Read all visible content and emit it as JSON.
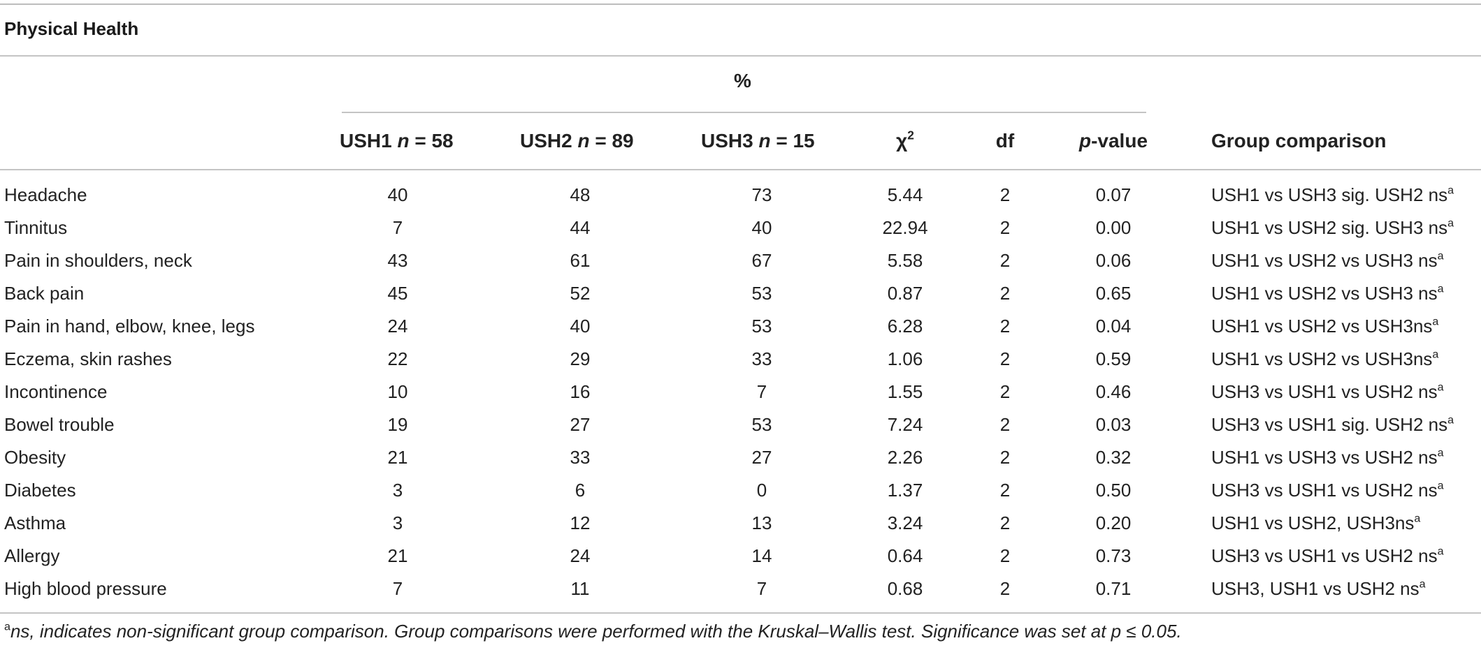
{
  "table": {
    "title": "Physical Health",
    "percent_label": "%",
    "headers": {
      "ush1_prefix": "USH1 ",
      "ush1_n": "n",
      "ush1_suffix": " = 58",
      "ush2_prefix": "USH2 ",
      "ush2_n": "n",
      "ush2_suffix": " = 89",
      "ush3_prefix": "USH3 ",
      "ush3_n": "n",
      "ush3_suffix": " = 15",
      "chi": "χ",
      "chi_sup": "2",
      "df": "df",
      "p_italic": "p",
      "p_rest": "-value",
      "group": "Group comparison"
    },
    "rows": [
      {
        "label": "Headache",
        "ush1": "40",
        "ush2": "48",
        "ush3": "73",
        "chi2": "5.44",
        "df": "2",
        "p": "0.07",
        "group": "USH1 vs USH3 sig. USH2 ns",
        "sup": "a"
      },
      {
        "label": "Tinnitus",
        "ush1": "7",
        "ush2": "44",
        "ush3": "40",
        "chi2": "22.94",
        "df": "2",
        "p": "0.00",
        "group": "USH1 vs USH2 sig. USH3 ns",
        "sup": "a"
      },
      {
        "label": "Pain in shoulders, neck",
        "ush1": "43",
        "ush2": "61",
        "ush3": "67",
        "chi2": "5.58",
        "df": "2",
        "p": "0.06",
        "group": "USH1 vs USH2 vs USH3 ns",
        "sup": "a"
      },
      {
        "label": "Back pain",
        "ush1": "45",
        "ush2": "52",
        "ush3": "53",
        "chi2": "0.87",
        "df": "2",
        "p": "0.65",
        "group": "USH1 vs USH2 vs USH3 ns",
        "sup": "a"
      },
      {
        "label": "Pain in hand, elbow, knee, legs",
        "ush1": "24",
        "ush2": "40",
        "ush3": "53",
        "chi2": "6.28",
        "df": "2",
        "p": "0.04",
        "group": "USH1 vs USH2 vs USH3ns",
        "sup": "a"
      },
      {
        "label": "Eczema, skin rashes",
        "ush1": "22",
        "ush2": "29",
        "ush3": "33",
        "chi2": "1.06",
        "df": "2",
        "p": "0.59",
        "group": "USH1 vs USH2 vs USH3ns",
        "sup": "a"
      },
      {
        "label": "Incontinence",
        "ush1": "10",
        "ush2": "16",
        "ush3": "7",
        "chi2": "1.55",
        "df": "2",
        "p": "0.46",
        "group": "USH3 vs USH1 vs USH2 ns",
        "sup": "a"
      },
      {
        "label": "Bowel trouble",
        "ush1": "19",
        "ush2": "27",
        "ush3": "53",
        "chi2": "7.24",
        "df": "2",
        "p": "0.03",
        "group": "USH3 vs USH1 sig. USH2 ns",
        "sup": "a"
      },
      {
        "label": "Obesity",
        "ush1": "21",
        "ush2": "33",
        "ush3": "27",
        "chi2": "2.26",
        "df": "2",
        "p": "0.32",
        "group": "USH1 vs USH3 vs USH2 ns",
        "sup": "a"
      },
      {
        "label": "Diabetes",
        "ush1": "3",
        "ush2": "6",
        "ush3": "0",
        "chi2": "1.37",
        "df": "2",
        "p": "0.50",
        "group": "USH3 vs USH1 vs USH2 ns",
        "sup": "a"
      },
      {
        "label": "Asthma",
        "ush1": "3",
        "ush2": "12",
        "ush3": "13",
        "chi2": "3.24",
        "df": "2",
        "p": "0.20",
        "group": "USH1 vs USH2, USH3ns",
        "sup": "a"
      },
      {
        "label": "Allergy",
        "ush1": "21",
        "ush2": "24",
        "ush3": "14",
        "chi2": "0.64",
        "df": "2",
        "p": "0.73",
        "group": "USH3 vs USH1 vs USH2 ns",
        "sup": "a"
      },
      {
        "label": "High blood pressure",
        "ush1": "7",
        "ush2": "11",
        "ush3": "7",
        "chi2": "0.68",
        "df": "2",
        "p": "0.71",
        "group": "USH3, USH1 vs USH2 ns",
        "sup": "a"
      }
    ],
    "footnote": {
      "sup": "a",
      "text": "ns, indicates non-significant group comparison. Group comparisons were performed with the Kruskal–Wallis test. Significance was set at p ≤ 0.05."
    }
  }
}
